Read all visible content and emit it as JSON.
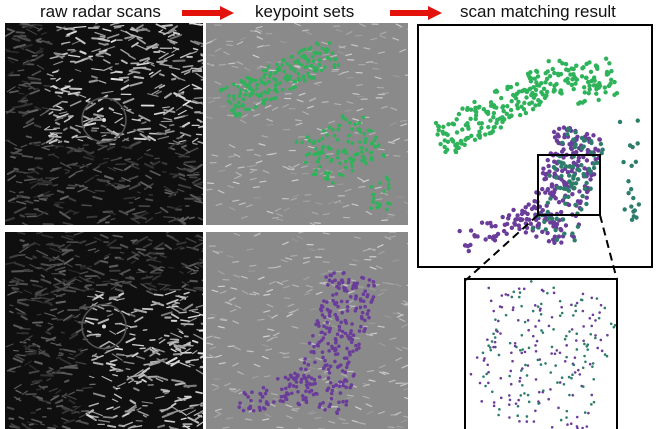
{
  "labels": {
    "raw": "raw radar scans",
    "keypoints": "keypoint sets",
    "result": "scan matching result"
  },
  "colors": {
    "arrow": "#e3120b",
    "green": "#2fb35a",
    "purple": "#6a3d9a",
    "teal": "#2e7d6b",
    "frame": "#000000"
  }
}
